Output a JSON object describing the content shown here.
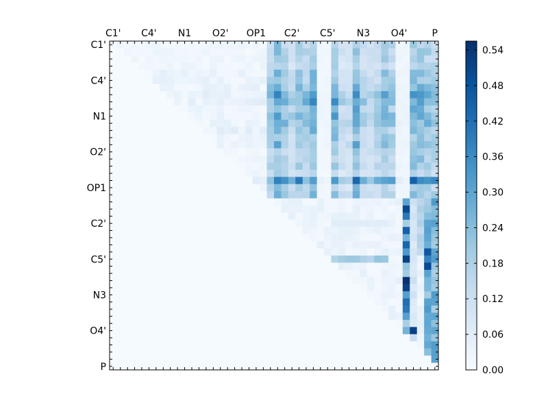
{
  "chart_data": {
    "type": "heatmap",
    "title": "",
    "xlabel": "",
    "ylabel": "",
    "n": 46,
    "x_tick_labels": [
      "C1'",
      "C4'",
      "N1",
      "O2'",
      "OP1",
      "C2'",
      "C5'",
      "N3",
      "O4'",
      "P"
    ],
    "y_tick_labels": [
      "C1'",
      "C4'",
      "N1",
      "O2'",
      "OP1",
      "C2'",
      "C5'",
      "N3",
      "O4'",
      "P"
    ],
    "tick_indices": [
      0,
      5,
      10,
      15,
      20,
      25,
      30,
      35,
      40,
      45
    ],
    "colorbar": {
      "ticks": [
        "0.00",
        "0.06",
        "0.12",
        "0.18",
        "0.24",
        "0.30",
        "0.36",
        "0.42",
        "0.48",
        "0.54"
      ],
      "range": [
        0.0,
        0.555
      ],
      "colors": [
        "#f7fbff",
        "#deebf7",
        "#c6dbef",
        "#9ecae1",
        "#6baed6",
        "#4292c6",
        "#2171b5",
        "#08519c",
        "#08306b"
      ]
    },
    "upper_triangle_rows": [
      {
        "row": 0,
        "base": 0.02,
        "hi": 0.15
      },
      {
        "row": 1,
        "base": 0.02,
        "hi": 0.16
      },
      {
        "row": 2,
        "base": 0.02,
        "hi": 0.15
      },
      {
        "row": 3,
        "base": 0.02,
        "hi": 0.14
      },
      {
        "row": 4,
        "base": 0.03,
        "hi": 0.18
      },
      {
        "row": 5,
        "base": 0.03,
        "hi": 0.17
      },
      {
        "row": 6,
        "base": 0.03,
        "hi": 0.2
      },
      {
        "row": 7,
        "base": 0.04,
        "hi": 0.22
      },
      {
        "row": 8,
        "base": 0.04,
        "hi": 0.25
      },
      {
        "row": 9,
        "base": 0.03,
        "hi": 0.19
      },
      {
        "row": 10,
        "base": 0.03,
        "hi": 0.23
      },
      {
        "row": 11,
        "base": 0.03,
        "hi": 0.21
      },
      {
        "row": 12,
        "base": 0.04,
        "hi": 0.18
      },
      {
        "row": 13,
        "base": 0.03,
        "hi": 0.17
      },
      {
        "row": 14,
        "base": 0.03,
        "hi": 0.19
      },
      {
        "row": 15,
        "base": 0.02,
        "hi": 0.15
      },
      {
        "row": 16,
        "base": 0.02,
        "hi": 0.16
      },
      {
        "row": 17,
        "base": 0.02,
        "hi": 0.17
      },
      {
        "row": 18,
        "base": 0.02,
        "hi": 0.13
      },
      {
        "row": 19,
        "base": 0.05,
        "hi": 0.3
      },
      {
        "row": 20,
        "base": 0.03,
        "hi": 0.15
      },
      {
        "row": 21,
        "base": 0.03,
        "hi": 0.17
      }
    ],
    "highlight_cells": [
      {
        "row": 23,
        "col": 41,
        "value": 0.5
      },
      {
        "row": 24,
        "col": 41,
        "value": 0.4
      },
      {
        "row": 26,
        "col": 41,
        "value": 0.45
      },
      {
        "row": 28,
        "col": 41,
        "value": 0.44
      },
      {
        "row": 30,
        "col": 41,
        "value": 0.52
      },
      {
        "row": 33,
        "col": 41,
        "value": 0.55
      },
      {
        "row": 34,
        "col": 41,
        "value": 0.52
      },
      {
        "row": 36,
        "col": 41,
        "value": 0.42
      },
      {
        "row": 37,
        "col": 41,
        "value": 0.4
      },
      {
        "row": 40,
        "col": 42,
        "value": 0.52
      },
      {
        "row": 29,
        "col": 44,
        "value": 0.47
      },
      {
        "row": 30,
        "col": 44,
        "value": 0.38
      },
      {
        "row": 31,
        "col": 44,
        "value": 0.5
      },
      {
        "row": 27,
        "col": 44,
        "value": 0.3
      }
    ]
  }
}
